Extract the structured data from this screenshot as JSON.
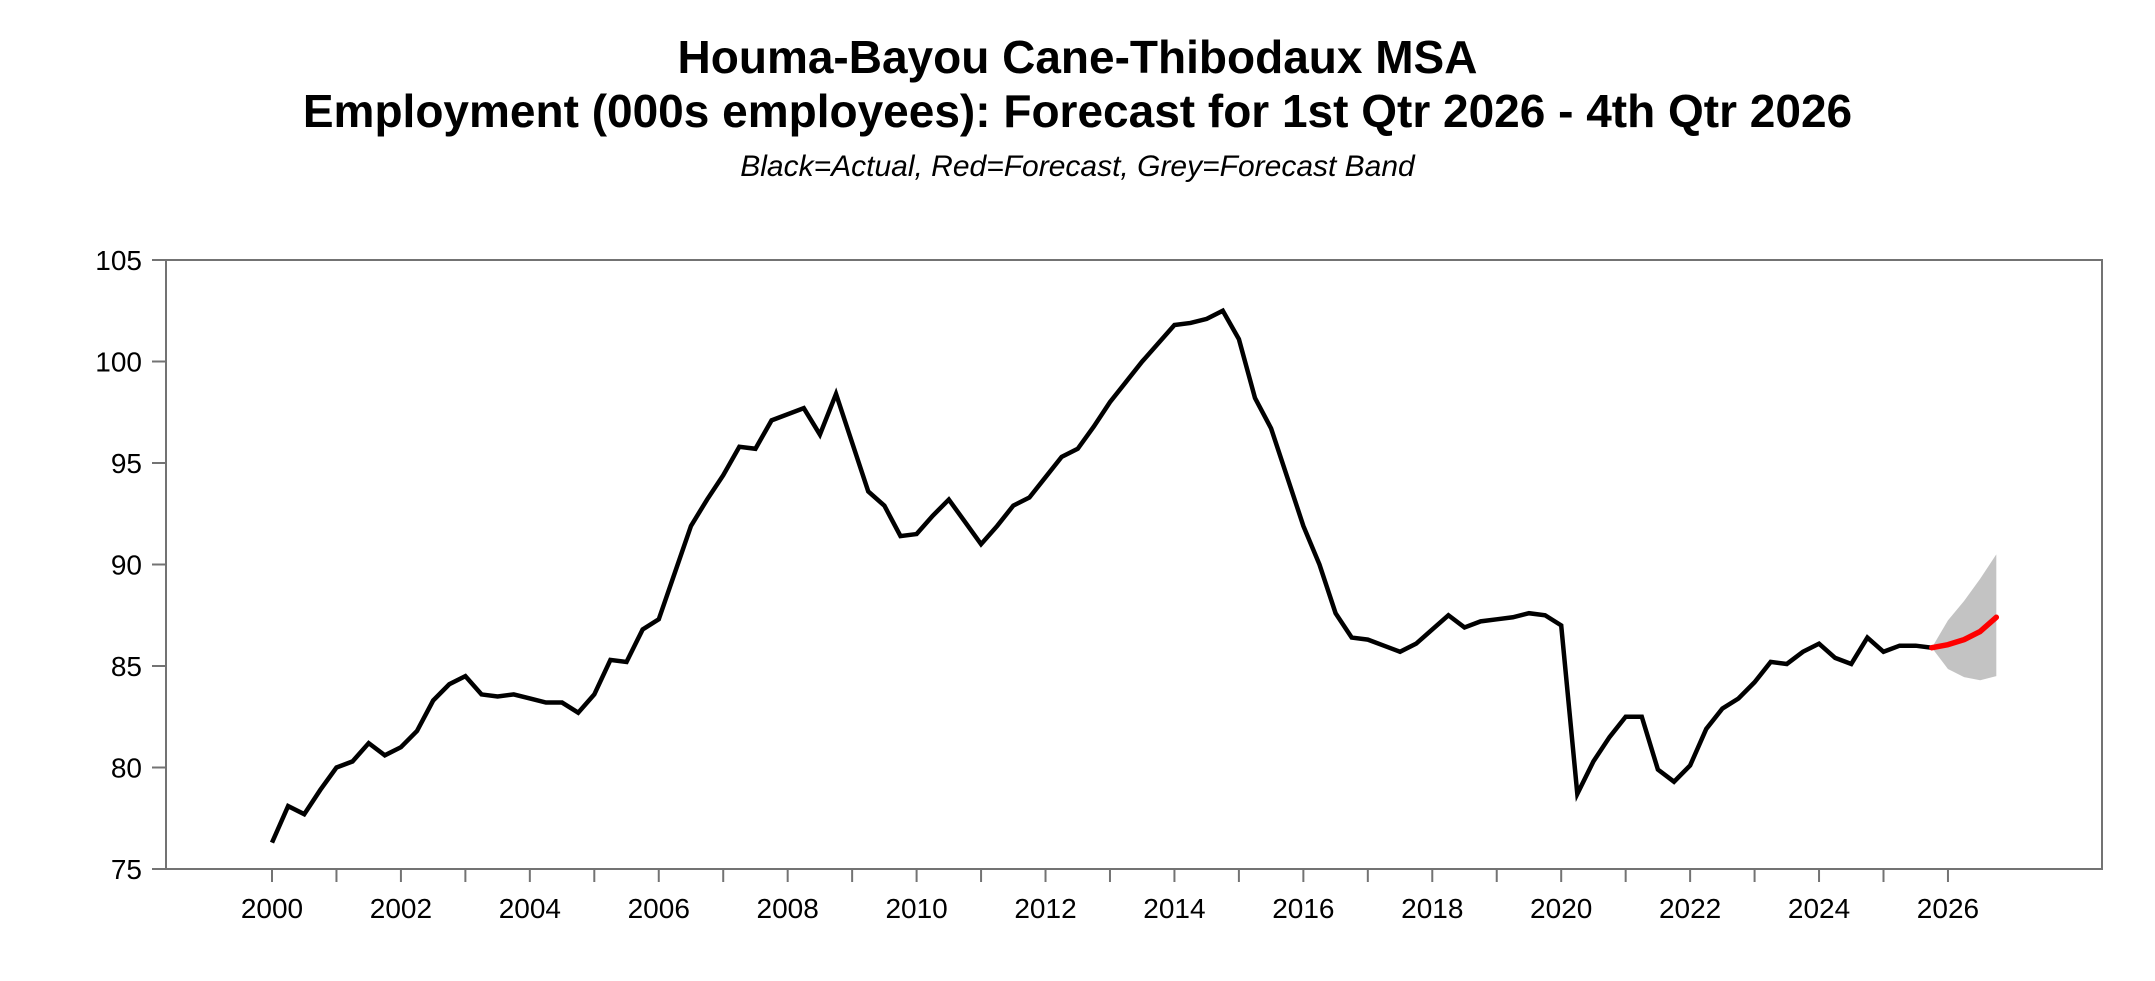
{
  "page": {
    "background": "#ffffff"
  },
  "chart_data": {
    "type": "line",
    "title_line1": "Houma-Bayou Cane-Thibodaux MSA",
    "title_line2": "Employment (000s employees): Forecast for 1st Qtr 2026 - 4th Qtr 2026",
    "subtitle": "Black=Actual, Red=Forecast, Grey=Forecast Band",
    "xlabel": "",
    "ylabel": "",
    "grid": false,
    "legend_position": "none",
    "x_axis": {
      "min": 1998.35,
      "max": 2028.4,
      "tick_years": [
        2000,
        2001,
        2002,
        2003,
        2004,
        2005,
        2006,
        2007,
        2008,
        2009,
        2010,
        2011,
        2012,
        2013,
        2014,
        2015,
        2016,
        2017,
        2018,
        2019,
        2020,
        2021,
        2022,
        2023,
        2024,
        2025,
        2026
      ],
      "label_years": [
        "2000",
        "2002",
        "2004",
        "2006",
        "2008",
        "2010",
        "2012",
        "2014",
        "2016",
        "2018",
        "2020",
        "2022",
        "2024",
        "2026"
      ]
    },
    "y_axis": {
      "min": 75,
      "max": 105,
      "ticks": [
        "75",
        "80",
        "85",
        "90",
        "95",
        "100",
        "105"
      ]
    },
    "colors": {
      "actual": "#000000",
      "forecast": "#fe0000",
      "band": "#c3c3c3",
      "axis": "#737373",
      "text": "#000000"
    },
    "series": [
      {
        "name": "Actual",
        "color": "#000000",
        "start": 2000.0,
        "step": 0.25,
        "values": [
          76.3,
          78.1,
          77.7,
          78.9,
          80.0,
          80.3,
          81.2,
          80.6,
          81.0,
          81.8,
          83.3,
          84.1,
          84.5,
          83.6,
          83.5,
          83.6,
          83.4,
          83.2,
          83.2,
          82.7,
          83.6,
          85.3,
          85.2,
          86.8,
          87.3,
          89.6,
          91.9,
          93.2,
          94.4,
          95.8,
          95.7,
          97.1,
          97.4,
          97.7,
          96.4,
          98.4,
          96.0,
          93.6,
          92.9,
          91.4,
          91.5,
          92.4,
          93.2,
          92.1,
          91.0,
          91.9,
          92.9,
          93.3,
          94.3,
          95.3,
          95.7,
          96.8,
          98.0,
          99.0,
          100.0,
          100.9,
          101.8,
          101.9,
          102.1,
          102.5,
          101.1,
          98.2,
          96.7,
          94.3,
          91.9,
          90.0,
          87.6,
          86.4,
          86.3,
          86.0,
          85.7,
          86.1,
          86.8,
          87.5,
          86.9,
          87.2,
          87.3,
          87.4,
          87.6,
          87.5,
          87.0,
          78.7,
          80.3,
          81.5,
          82.5,
          82.5,
          79.9,
          79.3,
          80.1,
          81.9,
          82.9,
          83.4,
          84.2,
          85.2,
          85.1,
          85.7,
          86.1,
          85.4,
          85.1,
          86.4,
          85.7,
          86.0,
          86.0,
          85.9
        ]
      },
      {
        "name": "Forecast",
        "color": "#fe0000",
        "start": 2025.75,
        "step": 0.25,
        "values": [
          85.9,
          86.05,
          86.3,
          86.7,
          87.4
        ]
      }
    ],
    "band": {
      "name": "Forecast Band",
      "color": "#c3c3c3",
      "start": 2025.75,
      "step": 0.25,
      "upper": [
        85.9,
        87.25,
        88.2,
        89.3,
        90.5
      ],
      "lower": [
        85.9,
        84.85,
        84.45,
        84.3,
        84.5
      ]
    }
  }
}
